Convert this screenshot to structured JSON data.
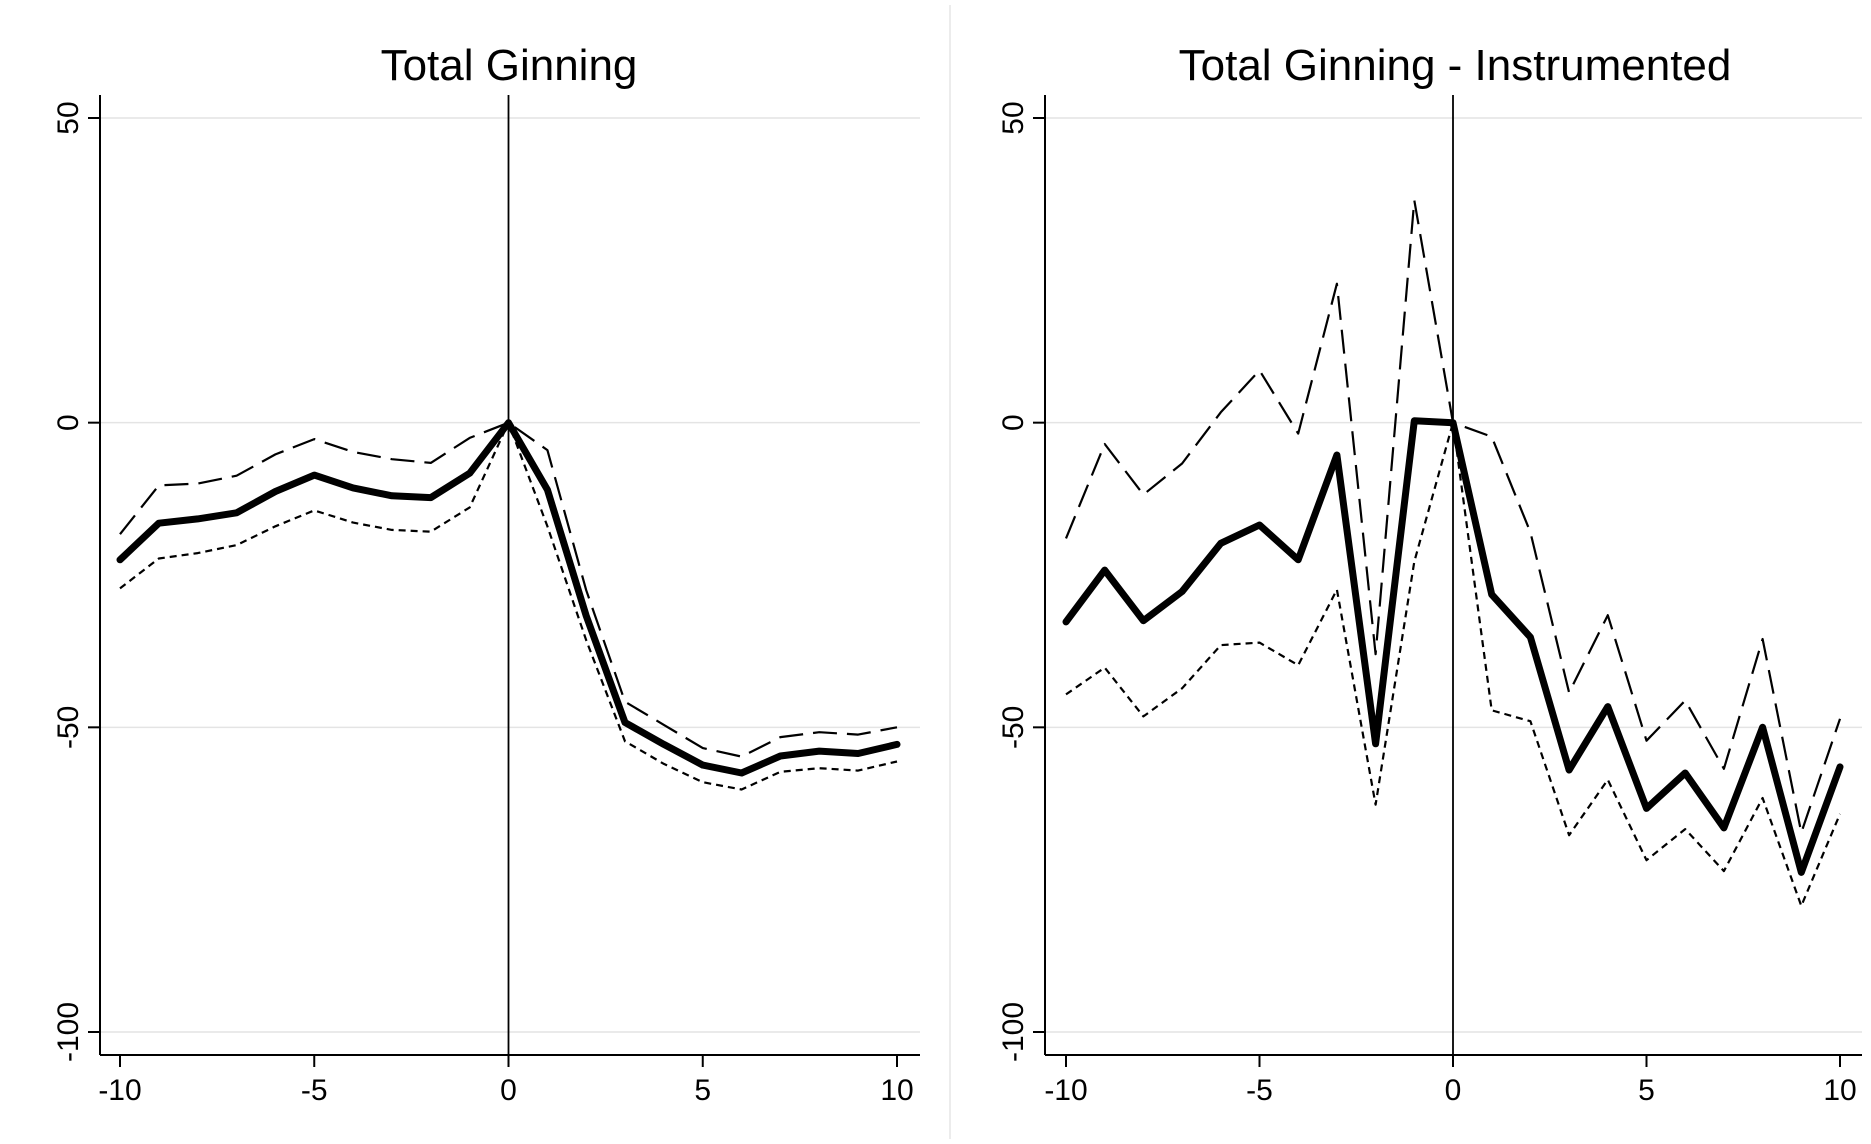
{
  "chart_data": [
    {
      "type": "line",
      "title": "Total Ginning",
      "xlabel": "",
      "ylabel": "",
      "xlim": [
        -10,
        10
      ],
      "ylim": [
        -100,
        50
      ],
      "xticks": [
        "-10",
        "-5",
        "0",
        "5",
        "10"
      ],
      "yticks": [
        "-100",
        "-50",
        "0",
        "50"
      ],
      "grid": true,
      "vline_x": 0,
      "x": [
        -10,
        -9,
        -8,
        -7,
        -6,
        -5,
        -4,
        -3,
        -2,
        -1,
        0,
        1,
        2,
        3,
        4,
        5,
        6,
        7,
        8,
        9,
        10
      ],
      "series": [
        {
          "style": "solid",
          "values": [
            -22.5,
            -16.5,
            -15.8,
            -14.8,
            -11.3,
            -8.6,
            -10.7,
            -12.0,
            -12.3,
            -8.3,
            0,
            -11.0,
            -31.7,
            -49.2,
            -52.8,
            -56.2,
            -57.5,
            -54.7,
            -53.9,
            -54.3,
            -52.8
          ]
        },
        {
          "style": "dashed",
          "values": [
            -18.3,
            -10.3,
            -10.0,
            -8.7,
            -5.2,
            -2.7,
            -4.8,
            -6.0,
            -6.6,
            -2.5,
            0,
            -4.5,
            -27.5,
            -45.8,
            -49.6,
            -53.4,
            -54.8,
            -51.6,
            -50.8,
            -51.2,
            -50.0
          ]
        },
        {
          "style": "dotted",
          "values": [
            -27.2,
            -22.3,
            -21.4,
            -20.1,
            -17.0,
            -14.4,
            -16.4,
            -17.6,
            -17.9,
            -13.9,
            0,
            -17.0,
            -35.7,
            -52.3,
            -56.0,
            -59.0,
            -60.2,
            -57.3,
            -56.7,
            -57.1,
            -55.6
          ]
        }
      ]
    },
    {
      "type": "line",
      "title": "Total Ginning - Instrumented",
      "xlabel": "",
      "ylabel": "",
      "xlim": [
        -10,
        10
      ],
      "ylim": [
        -100,
        50
      ],
      "xticks": [
        "-10",
        "-5",
        "0",
        "5",
        "10"
      ],
      "yticks": [
        "-100",
        "-50",
        "0",
        "50"
      ],
      "grid": true,
      "vline_x": 0,
      "x": [
        -10,
        -9,
        -8,
        -7,
        -6,
        -5,
        -4,
        -3,
        -2,
        -1,
        0,
        1,
        2,
        3,
        4,
        5,
        6,
        7,
        8,
        9,
        10
      ],
      "series": [
        {
          "style": "solid",
          "values": [
            -32.7,
            -24.2,
            -32.5,
            -27.7,
            -19.8,
            -16.8,
            -22.5,
            -5.3,
            -52.7,
            0.3,
            0,
            -28.2,
            -35.2,
            -57.0,
            -46.6,
            -63.3,
            -57.5,
            -66.5,
            -50.0,
            -73.8,
            -56.5
          ]
        },
        {
          "style": "dashed",
          "values": [
            -19.0,
            -3.5,
            -11.8,
            -6.7,
            1.7,
            8.6,
            -1.8,
            22.8,
            -38.0,
            36.5,
            0,
            -2.3,
            -18.0,
            -44.3,
            -31.6,
            -52.2,
            -45.6,
            -56.8,
            -35.5,
            -67.3,
            -48.6
          ]
        },
        {
          "style": "dotted",
          "values": [
            -44.6,
            -40.2,
            -48.2,
            -43.6,
            -36.5,
            -36.1,
            -39.8,
            -27.4,
            -62.7,
            -22.8,
            0,
            -47.2,
            -49.0,
            -67.7,
            -58.6,
            -71.8,
            -66.7,
            -73.6,
            -61.6,
            -79.3,
            -64.2
          ]
        }
      ]
    }
  ]
}
